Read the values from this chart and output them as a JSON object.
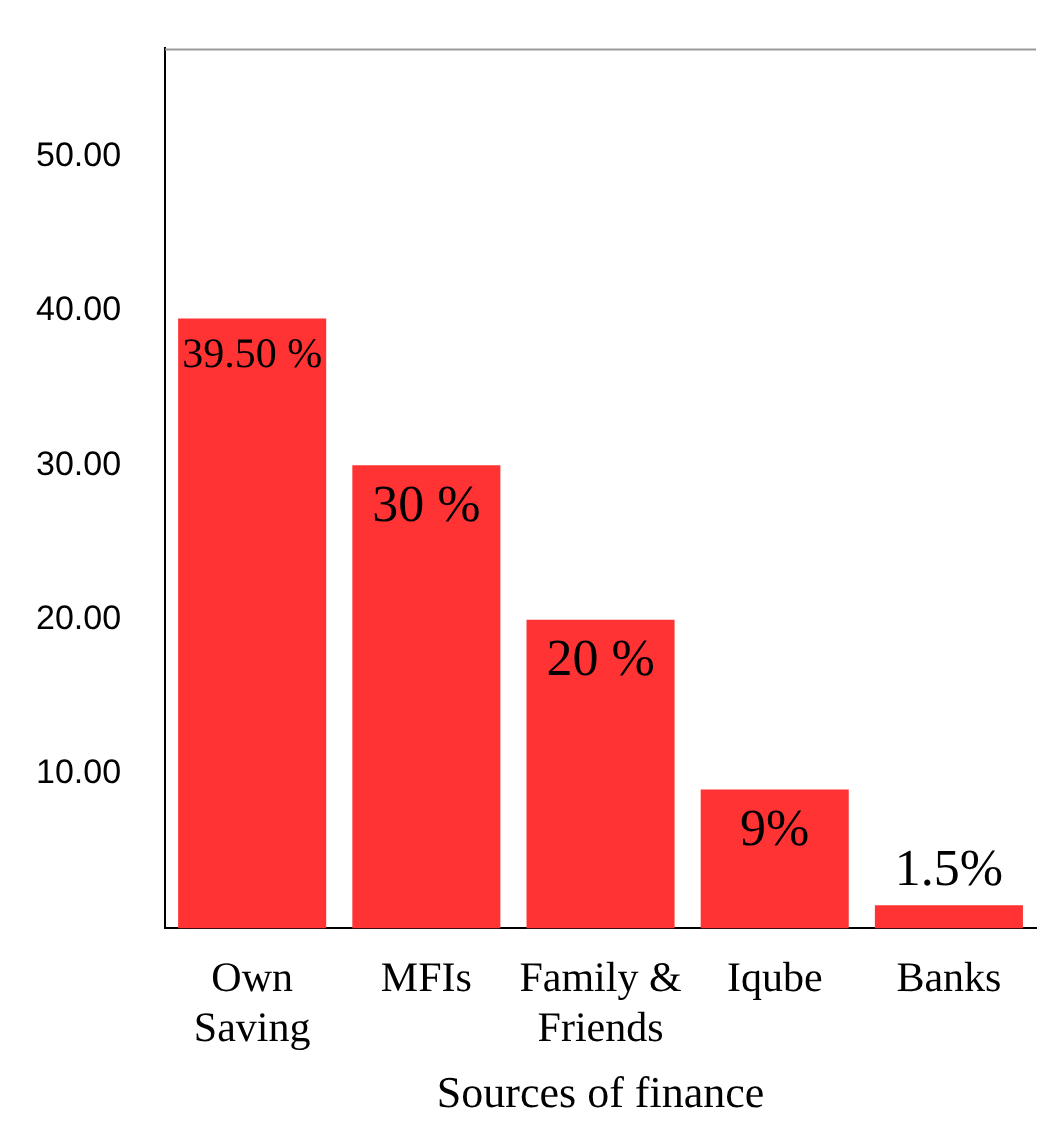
{
  "chart_data": {
    "type": "bar",
    "xlabel": "Sources of finance",
    "categories": [
      "Own Saving",
      "MFIs",
      "Family & Friends",
      "Iqube",
      "Banks"
    ],
    "values": [
      39.5,
      30,
      20,
      9,
      1.5
    ],
    "value_labels": [
      "39.50 %",
      "30 %",
      "20 %",
      "9%",
      "1.5%"
    ],
    "color": "#ff3333",
    "ylim": [
      0,
      57
    ],
    "yticks": [
      {
        "value": 10,
        "label": "10.00"
      },
      {
        "value": 20,
        "label": "20.00"
      },
      {
        "value": 30,
        "label": "30.00"
      },
      {
        "value": 40,
        "label": "40.00"
      },
      {
        "value": 50,
        "label": "50.00"
      }
    ],
    "grid": false,
    "legend": false
  }
}
